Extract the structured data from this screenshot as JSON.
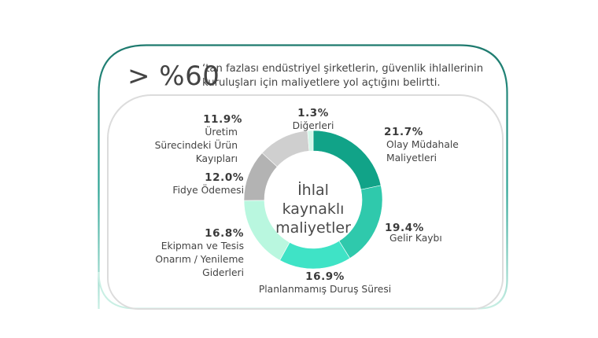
{
  "headline": {
    "big": "> %60",
    "line1": "‘tan fazlası endüstriyel şirketlerin, güvenlik ihlallerinin",
    "line2": "kuruluşları için maliyetlere yol açtığını belirtti."
  },
  "center_label": {
    "line1": "İhlal",
    "line2": "kaynaklı",
    "line3": "maliyetler"
  },
  "colors": {
    "frame_top": "#1e7a6e",
    "frame_bottom": "#c9efe4",
    "inner_frame": "#dcdcdc"
  },
  "segments": [
    {
      "pct": "21.7%",
      "lines": [
        "Olay Müdahale",
        "Maliyetleri"
      ],
      "color": "#11a388"
    },
    {
      "pct": "19.4%",
      "lines": [
        "Gelir Kaybı"
      ],
      "color": "#2fc9ac"
    },
    {
      "pct": "16.9%",
      "lines": [
        "Planlanmamış Duruş Süresi"
      ],
      "color": "#3fe3c6"
    },
    {
      "pct": "16.8%",
      "lines": [
        "Ekipman ve Tesis",
        "Onarım / Yenileme",
        "Giderleri"
      ],
      "color": "#b9f7df"
    },
    {
      "pct": "12.0%",
      "lines": [
        "Fidye Ödemesi"
      ],
      "color": "#b3b3b3"
    },
    {
      "pct": "11.9%",
      "lines": [
        "Üretim",
        "Sürecindeki Ürün",
        "Kayıpları"
      ],
      "color": "#cfcfcf"
    },
    {
      "pct": "1.3%",
      "lines": [
        "Diğerleri"
      ],
      "color": "#d4f7e9"
    }
  ],
  "chart_data": {
    "type": "pie",
    "subtype": "donut",
    "title": "İhlal kaynaklı maliyetler",
    "categories": [
      "Olay Müdahale Maliyetleri",
      "Gelir Kaybı",
      "Planlanmamış Duruş Süresi",
      "Ekipman ve Tesis Onarım / Yenileme Giderleri",
      "Fidye Ödemesi",
      "Üretim Sürecindeki Ürün Kayıpları",
      "Diğerleri"
    ],
    "values": [
      21.7,
      19.4,
      16.9,
      16.8,
      12.0,
      11.9,
      1.3
    ],
    "colors": [
      "#11a388",
      "#2fc9ac",
      "#3fe3c6",
      "#b9f7df",
      "#b3b3b3",
      "#cfcfcf",
      "#d4f7e9"
    ],
    "annotation": "> %60 ‘tan fazlası endüstriyel şirketlerin, güvenlik ihlallerinin kuruluşları için maliyetlere yol açtığını belirtti.",
    "legend": "labels placed around donut"
  }
}
